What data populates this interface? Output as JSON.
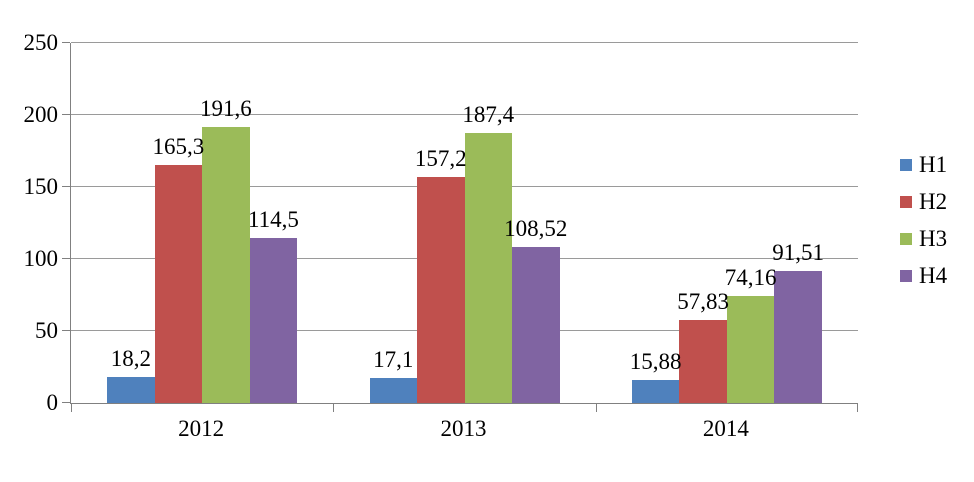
{
  "chart_data": {
    "type": "bar",
    "title": "",
    "categories": [
      "2012",
      "2013",
      "2014"
    ],
    "series": [
      {
        "name": "H1",
        "color": "#4F81BD",
        "values": [
          18.2,
          17.1,
          15.88
        ],
        "labels": [
          "18,2",
          "17,1",
          "15,88"
        ]
      },
      {
        "name": "H2",
        "color": "#C0504D",
        "values": [
          165.3,
          157.2,
          57.83
        ],
        "labels": [
          "165,3",
          "157,2",
          "57,83"
        ]
      },
      {
        "name": "H3",
        "color": "#9BBB59",
        "values": [
          191.6,
          187.4,
          74.16
        ],
        "labels": [
          "191,6",
          "187,4",
          "74,16"
        ]
      },
      {
        "name": "H4",
        "color": "#8064A2",
        "values": [
          114.5,
          108.52,
          91.51
        ],
        "labels": [
          "114,5",
          "108,52",
          "91,51"
        ]
      }
    ],
    "y_axis": {
      "min": 0,
      "max": 250,
      "step": 50,
      "tick_labels": [
        "0",
        "50",
        "100",
        "150",
        "200",
        "250"
      ]
    },
    "x_axis": {
      "tick_labels": [
        "2012",
        "2013",
        "2014"
      ]
    },
    "legend": {
      "position": "right",
      "entries": [
        "H1",
        "H2",
        "H3",
        "H4"
      ]
    },
    "grid": true,
    "styles": {
      "grid_color": "#9a9a9a",
      "axis_color": "#808080",
      "text_color": "#000000",
      "background": "#ffffff"
    }
  }
}
